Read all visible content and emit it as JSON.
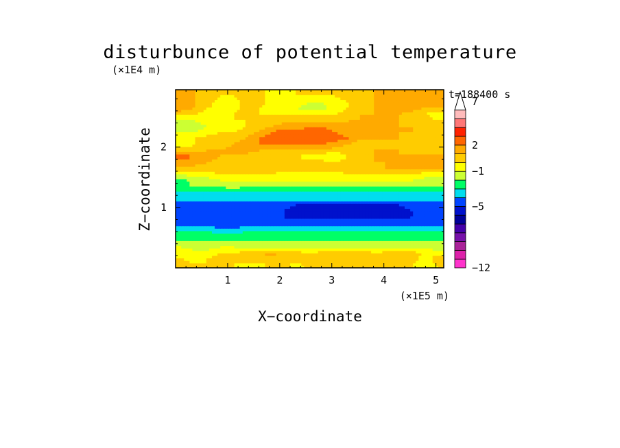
{
  "chart_data": {
    "type": "heatmap",
    "title": "disturbunce of potential temperature",
    "xlabel": "X−coordinate",
    "ylabel": "Z−coordinate",
    "x_unit": "(×1E5 m)",
    "y_unit": "(×1E4 m)",
    "time_label": "t=188400 s",
    "xlim": [
      0,
      5.15
    ],
    "ylim": [
      0,
      2.95
    ],
    "x_ticks": [
      "1",
      "2",
      "3",
      "4",
      "5"
    ],
    "y_ticks": [
      "1",
      "2"
    ],
    "legend_placement": "right",
    "colorbar": {
      "levels": [
        -12,
        -11,
        -10,
        -9,
        -8,
        -7,
        -6,
        -5,
        -4,
        -3,
        -2,
        -1,
        0,
        1,
        2,
        3,
        4,
        5,
        6,
        7,
        8,
        9
      ],
      "tick_labels": [
        "7",
        "2",
        "−1",
        "−5",
        "−12"
      ],
      "colors": [
        "#ff33cc",
        "#dd22aa",
        "#aa2299",
        "#7711aa",
        "#4400aa",
        "#000099",
        "#0011cc",
        "#0044ff",
        "#00ddee",
        "#00ff66",
        "#ccff33",
        "#ffff00",
        "#ffcc00",
        "#ffaa00",
        "#ff6600",
        "#ff2200",
        "#ff7777",
        "#ffbbbb",
        "#ffffff"
      ]
    },
    "rows_z": [
      0.05,
      0.15,
      0.25,
      0.35,
      0.45,
      0.55,
      0.65,
      0.75,
      0.85,
      0.95,
      1.05,
      1.15,
      1.25,
      1.35,
      1.45,
      1.55,
      1.65,
      1.75,
      1.85,
      1.95,
      2.05,
      2.15,
      2.25,
      2.35,
      2.45,
      2.55,
      2.65,
      2.75,
      2.85
    ],
    "row_values": [
      [
        0.5,
        0.2,
        0.0,
        0.5,
        0.0,
        -0.5,
        -0.5,
        0.5,
        0.5,
        -0.5,
        0.5,
        0.5,
        0.0,
        0.0,
        0.0,
        0.5,
        0.5,
        0.0,
        0.0,
        -0.5,
        0.0
      ],
      [
        0.0,
        -0.5,
        0.0,
        0.5,
        0.5,
        0.5,
        0.5,
        0.0,
        0.0,
        0.5,
        0.5,
        0.5,
        0.5,
        0.5,
        0.5,
        0.5,
        0.0,
        0.5,
        0.5,
        -0.5,
        0.5
      ],
      [
        -0.5,
        -0.5,
        -0.5,
        0.0,
        0.0,
        0.5,
        1.0,
        1.5,
        1.0,
        0.5,
        0.0,
        0.5,
        0.5,
        1.0,
        1.0,
        0.0,
        0.5,
        0.5,
        0.5,
        0.0,
        -0.5
      ],
      [
        -1.0,
        -1.5,
        -1.5,
        -1.0,
        -1.0,
        -1.5,
        -1.5,
        -1.5,
        -1.5,
        -1.5,
        -1.5,
        -1.5,
        -1.5,
        -1.5,
        -1.5,
        -1.5,
        -1.5,
        -1.5,
        -1.5,
        -1.5,
        -1.5
      ],
      [
        -2.0,
        -2.0,
        -2.0,
        -2.0,
        -2.0,
        -2.0,
        -2.0,
        -2.0,
        -2.0,
        -2.0,
        -2.0,
        -2.0,
        -2.0,
        -2.0,
        -2.0,
        -2.0,
        -2.0,
        -2.0,
        -2.0,
        -2.0,
        -2.0
      ],
      [
        -2.5,
        -2.5,
        -2.5,
        -2.5,
        -2.5,
        -2.5,
        -2.5,
        -2.5,
        -2.5,
        -2.5,
        -2.5,
        -2.5,
        -2.5,
        -2.5,
        -2.5,
        -2.5,
        -2.5,
        -2.5,
        -2.5,
        -2.5,
        -2.5
      ],
      [
        -3.5,
        -3.5,
        -3.5,
        -4.0,
        -4.0,
        -3.5,
        -3.5,
        -3.5,
        -3.5,
        -3.5,
        -3.5,
        -3.5,
        -3.5,
        -3.5,
        -3.5,
        -3.5,
        -3.5,
        -3.5,
        -3.5,
        -3.5,
        -3.5
      ],
      [
        -4.5,
        -4.5,
        -4.5,
        -5.0,
        -5.0,
        -4.5,
        -4.5,
        -4.5,
        -4.5,
        -4.5,
        -4.5,
        -4.5,
        -4.5,
        -4.5,
        -4.5,
        -4.5,
        -4.5,
        -4.5,
        -4.5,
        -4.5,
        -4.5
      ],
      [
        -4.5,
        -4.5,
        -5.0,
        -5.0,
        -5.0,
        -5.0,
        -5.0,
        -5.0,
        -5.0,
        -5.5,
        -5.5,
        -5.5,
        -5.5,
        -5.5,
        -5.5,
        -5.5,
        -5.5,
        -5.5,
        -5.0,
        -5.0,
        -5.0
      ],
      [
        -4.5,
        -4.5,
        -5.0,
        -5.0,
        -5.0,
        -5.0,
        -5.0,
        -5.0,
        -5.0,
        -5.5,
        -5.5,
        -5.5,
        -5.5,
        -5.5,
        -5.5,
        -5.5,
        -5.5,
        -5.5,
        -5.0,
        -5.0,
        -5.0
      ],
      [
        -4.5,
        -4.5,
        -4.5,
        -4.5,
        -4.5,
        -4.5,
        -4.5,
        -4.5,
        -4.5,
        -5.0,
        -5.0,
        -5.0,
        -5.0,
        -5.0,
        -5.0,
        -5.0,
        -5.0,
        -5.0,
        -4.5,
        -4.5,
        -4.5
      ],
      [
        -3.5,
        -3.5,
        -3.5,
        -3.5,
        -3.5,
        -3.5,
        -3.5,
        -3.5,
        -3.5,
        -3.5,
        -3.5,
        -3.5,
        -3.5,
        -3.5,
        -3.5,
        -3.5,
        -3.5,
        -3.5,
        -3.5,
        -3.5,
        -3.5
      ],
      [
        -3.0,
        -3.0,
        -3.0,
        -3.0,
        -3.0,
        -3.0,
        -3.0,
        -3.0,
        -3.0,
        -3.0,
        -3.0,
        -3.0,
        -3.0,
        -3.0,
        -3.0,
        -3.0,
        -3.0,
        -3.0,
        -3.0,
        -3.0,
        -3.0
      ],
      [
        -2.0,
        -2.0,
        -2.0,
        -2.0,
        -1.5,
        -2.0,
        -2.0,
        -2.0,
        -2.0,
        -2.0,
        -2.0,
        -2.0,
        -2.0,
        -2.0,
        -2.0,
        -2.0,
        -2.0,
        -2.0,
        -2.0,
        -2.0,
        -2.0
      ],
      [
        -2.5,
        -1.5,
        -1.5,
        -1.0,
        -1.0,
        -1.0,
        -1.0,
        -1.0,
        -1.0,
        -1.0,
        -1.0,
        -1.0,
        -1.0,
        -1.0,
        -1.0,
        -1.0,
        -1.0,
        -1.0,
        -1.0,
        -1.5,
        -1.5
      ],
      [
        -1.0,
        -0.5,
        -0.5,
        0.0,
        0.0,
        0.0,
        0.0,
        0.0,
        -0.5,
        -0.5,
        -0.5,
        -0.5,
        -0.5,
        0.0,
        0.0,
        0.0,
        0.0,
        0.0,
        0.0,
        -0.5,
        -0.5
      ],
      [
        0.5,
        0.5,
        0.5,
        0.5,
        0.5,
        0.5,
        0.0,
        0.5,
        0.5,
        0.5,
        0.5,
        0.5,
        0.5,
        0.5,
        0.5,
        0.5,
        1.0,
        1.0,
        1.0,
        1.0,
        1.0
      ],
      [
        1.5,
        1.5,
        1.0,
        0.5,
        0.5,
        0.5,
        0.0,
        0.5,
        0.5,
        0.5,
        0.5,
        0.5,
        0.0,
        0.5,
        0.5,
        1.0,
        1.0,
        1.5,
        1.5,
        1.5,
        1.5
      ],
      [
        2.5,
        2.0,
        1.5,
        1.0,
        0.5,
        0.5,
        0.5,
        0.0,
        0.0,
        0.0,
        -0.5,
        -1.0,
        -1.0,
        0.0,
        0.5,
        1.0,
        1.0,
        1.0,
        1.5,
        1.5,
        1.5
      ],
      [
        0.5,
        0.5,
        1.0,
        1.0,
        1.5,
        1.5,
        1.0,
        0.5,
        0.5,
        1.0,
        1.0,
        1.0,
        0.5,
        0.5,
        0.5,
        1.0,
        1.0,
        1.0,
        0.5,
        0.5,
        0.0
      ],
      [
        -0.5,
        0.0,
        0.5,
        0.5,
        1.0,
        1.5,
        2.0,
        2.0,
        2.0,
        2.0,
        2.0,
        2.0,
        1.5,
        1.0,
        0.5,
        0.5,
        1.0,
        0.5,
        0.0,
        0.0,
        0.0
      ],
      [
        0.0,
        0.0,
        0.5,
        0.5,
        0.5,
        1.0,
        2.0,
        2.5,
        2.5,
        3.0,
        3.0,
        3.0,
        2.5,
        2.0,
        1.0,
        1.0,
        1.0,
        1.0,
        0.5,
        0.5,
        0.0
      ],
      [
        -1.0,
        -1.0,
        -0.5,
        0.0,
        0.0,
        0.5,
        1.0,
        2.0,
        2.5,
        2.5,
        2.5,
        2.5,
        2.0,
        1.5,
        1.0,
        1.0,
        1.0,
        1.0,
        1.0,
        1.0,
        1.0
      ],
      [
        -2.0,
        -1.5,
        -1.0,
        -1.0,
        -0.5,
        0.0,
        0.5,
        1.0,
        1.5,
        1.5,
        2.0,
        2.0,
        1.5,
        1.0,
        1.0,
        1.0,
        1.0,
        1.0,
        1.0,
        0.5,
        0.5
      ],
      [
        -1.5,
        -1.0,
        -0.5,
        -0.5,
        0.0,
        0.0,
        0.0,
        0.5,
        0.5,
        0.5,
        0.5,
        0.5,
        0.5,
        1.0,
        1.0,
        1.0,
        1.0,
        1.0,
        0.5,
        0.5,
        0.0
      ],
      [
        0.5,
        0.0,
        -0.5,
        -0.5,
        0.0,
        0.5,
        0.0,
        0.0,
        0.0,
        0.0,
        0.0,
        0.0,
        0.0,
        0.5,
        1.0,
        1.0,
        1.0,
        1.0,
        0.5,
        0.0,
        -0.5
      ],
      [
        1.5,
        1.0,
        0.0,
        -0.5,
        -0.5,
        0.5,
        0.0,
        -0.5,
        -0.5,
        -1.0,
        -1.5,
        -1.5,
        -0.5,
        0.0,
        0.5,
        1.0,
        1.5,
        1.5,
        1.5,
        1.0,
        1.0
      ],
      [
        1.5,
        1.0,
        0.5,
        -0.5,
        -0.5,
        0.5,
        0.5,
        -0.5,
        -0.5,
        -0.5,
        -1.0,
        -1.0,
        -0.5,
        0.0,
        0.5,
        1.0,
        1.5,
        1.5,
        1.5,
        1.5,
        1.5
      ],
      [
        1.0,
        1.0,
        0.5,
        0.0,
        0.0,
        0.5,
        0.5,
        -0.5,
        -0.5,
        0.0,
        0.0,
        0.0,
        0.0,
        0.5,
        0.5,
        1.0,
        1.0,
        1.0,
        1.0,
        1.0,
        1.0
      ]
    ]
  }
}
